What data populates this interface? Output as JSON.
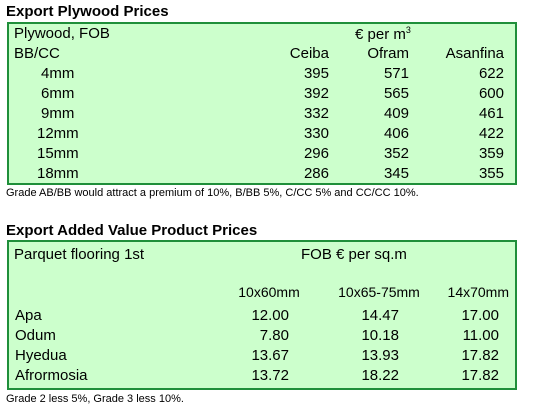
{
  "plywood": {
    "title": "Export Plywood Prices",
    "label1": "Plywood, FOB",
    "label2": "BB/CC",
    "unit": "€ per m",
    "unit_sup": "3",
    "columns": [
      "Ceiba",
      "Ofram",
      "Asanfina"
    ],
    "rows": [
      {
        "size": "4mm",
        "values": [
          "395",
          "571",
          "622"
        ]
      },
      {
        "size": "6mm",
        "values": [
          "392",
          "565",
          "600"
        ]
      },
      {
        "size": "9mm",
        "values": [
          "332",
          "409",
          "461"
        ]
      },
      {
        "size": "12mm",
        "values": [
          "330",
          "406",
          "422"
        ]
      },
      {
        "size": "15mm",
        "values": [
          "296",
          "352",
          "359"
        ]
      },
      {
        "size": "18mm",
        "values": [
          "286",
          "345",
          "355"
        ]
      }
    ],
    "note": "Grade AB/BB would attract a premium of 10%, B/BB 5%, C/CC 5% and CC/CC 10%."
  },
  "added_value": {
    "title": "Export Added Value Product Prices",
    "label": "Parquet flooring 1st",
    "unit": "FOB € per sq.m",
    "columns": [
      "10x60mm",
      "10x65-75mm",
      "14x70mm"
    ],
    "rows": [
      {
        "name": "Apa",
        "values": [
          "12.00",
          "14.47",
          "17.00"
        ]
      },
      {
        "name": "Odum",
        "values": [
          "7.80",
          "10.18",
          "11.00"
        ]
      },
      {
        "name": "Hyedua",
        "values": [
          "13.67",
          "13.93",
          "17.82"
        ]
      },
      {
        "name": "Afrormosia",
        "values": [
          "13.72",
          "18.22",
          "17.82"
        ]
      }
    ],
    "note": "Grade 2 less 5%, Grade 3 less 10%."
  }
}
